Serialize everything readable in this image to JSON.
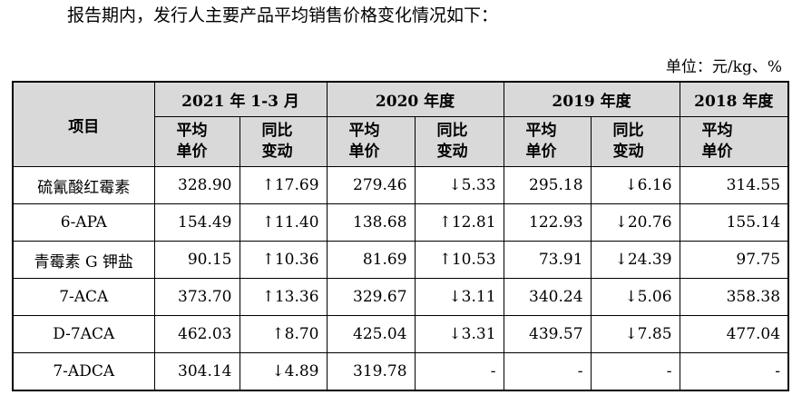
{
  "intro_text": "报告期内，发行人主要产品平均销售价格变化情况如下：",
  "unit_text": "单位：元/kg、%",
  "table": {
    "item_header": "项目",
    "periods": [
      "2021 年 1-3 月",
      "2020 年度",
      "2019 年度",
      "2018 年度"
    ],
    "sub_headers": {
      "price_line1": "平均",
      "price_line2": "单价",
      "change_line1": "同比",
      "change_line2": "变动"
    },
    "rows": [
      {
        "name": "硫氰酸红霉素",
        "p2021": "328.90",
        "c2021": "↑17.69",
        "p2020": "279.46",
        "c2020": "↓5.33",
        "p2019": "295.18",
        "c2019": "↓6.16",
        "p2018": "314.55"
      },
      {
        "name": "6-APA",
        "p2021": "154.49",
        "c2021": "↑11.40",
        "p2020": "138.68",
        "c2020": "↑12.81",
        "p2019": "122.93",
        "c2019": "↓20.76",
        "p2018": "155.14"
      },
      {
        "name": "青霉素 G 钾盐",
        "p2021": "90.15",
        "c2021": "↑10.36",
        "p2020": "81.69",
        "c2020": "↑10.53",
        "p2019": "73.91",
        "c2019": "↓24.39",
        "p2018": "97.75"
      },
      {
        "name": "7-ACA",
        "p2021": "373.70",
        "c2021": "↑13.36",
        "p2020": "329.67",
        "c2020": "↓3.11",
        "p2019": "340.24",
        "c2019": "↓5.06",
        "p2018": "358.38"
      },
      {
        "name": "D-7ACA",
        "p2021": "462.03",
        "c2021": "↑8.70",
        "p2020": "425.04",
        "c2020": "↓3.31",
        "p2019": "439.57",
        "c2019": "↓7.85",
        "p2018": "477.04"
      },
      {
        "name": "7-ADCA",
        "p2021": "304.14",
        "c2021": "↓4.89",
        "p2020": "319.78",
        "c2020": "-",
        "p2019": "-",
        "c2019": "-",
        "p2018": "-"
      }
    ]
  }
}
